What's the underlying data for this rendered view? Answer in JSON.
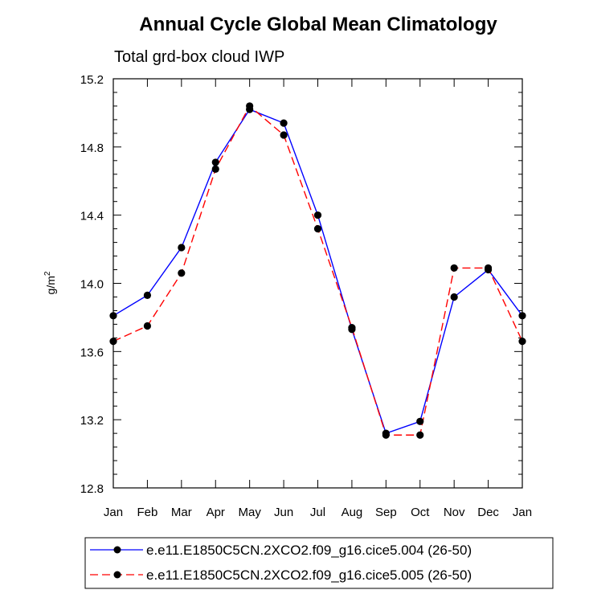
{
  "chart_data": {
    "type": "line",
    "title": "Annual Cycle Global Mean Climatology",
    "subtitle": "Total grd-box cloud IWP",
    "ylabel": "g/m",
    "ylabel_superscript": "2",
    "xlabel": "",
    "categories": [
      "Jan",
      "Feb",
      "Mar",
      "Apr",
      "May",
      "Jun",
      "Jul",
      "Aug",
      "Sep",
      "Oct",
      "Nov",
      "Dec",
      "Jan"
    ],
    "ylim": [
      12.8,
      15.2
    ],
    "yticks": [
      12.8,
      13.2,
      13.6,
      14.0,
      14.4,
      14.8,
      15.2
    ],
    "ytick_labels": [
      "12.8",
      "13.2",
      "13.6",
      "14.0",
      "14.4",
      "14.8",
      "15.2"
    ],
    "grid": false,
    "legend_position": "bottom",
    "series": [
      {
        "name": "e.e11.E1850C5CN.2XCO2.f09_g16.cice5.004 (26-50)",
        "color": "#0000ff",
        "dash": "solid",
        "values": [
          13.81,
          13.93,
          14.21,
          14.71,
          15.02,
          14.94,
          14.4,
          13.73,
          13.12,
          13.19,
          13.92,
          14.08,
          13.81
        ]
      },
      {
        "name": "e.e11.E1850C5CN.2XCO2.f09_g16.cice5.005 (26-50)",
        "color": "#ff0000",
        "dash": "dashed",
        "values": [
          13.66,
          13.75,
          14.06,
          14.67,
          15.04,
          14.87,
          14.32,
          13.74,
          13.11,
          13.11,
          14.09,
          14.09,
          13.66
        ]
      }
    ]
  }
}
